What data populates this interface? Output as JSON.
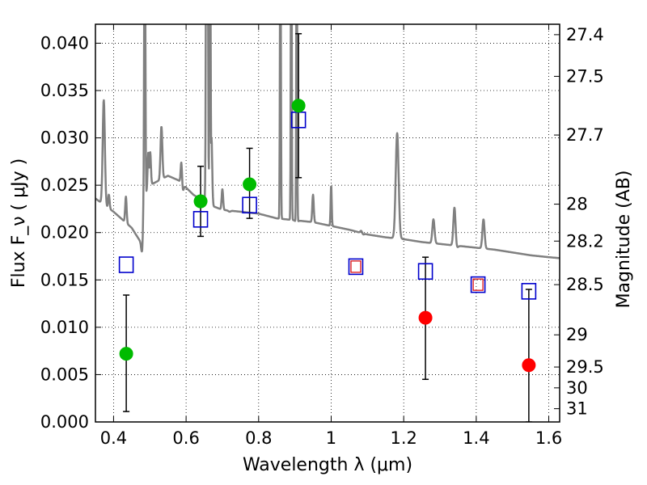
{
  "chart_data": {
    "type": "scatter",
    "title": "",
    "xlabel": "Wavelength  λ (μm)",
    "ylabel": "Flux  F_ν  ( μJy )",
    "y2label": "Magnitude (AB)",
    "xlim": [
      0.35,
      1.63
    ],
    "ylim": [
      0.0,
      0.042
    ],
    "grid": true,
    "xticks": [
      0.4,
      0.6,
      0.8,
      1.0,
      1.2,
      1.4,
      1.6
    ],
    "xtick_labels": [
      "0.4",
      "0.6",
      "0.8",
      "1",
      "1.2",
      "1.4",
      "1.6"
    ],
    "yticks": [
      0.0,
      0.005,
      0.01,
      0.015,
      0.02,
      0.025,
      0.03,
      0.035,
      0.04
    ],
    "ytick_labels": [
      "0.000",
      "0.005",
      "0.010",
      "0.015",
      "0.020",
      "0.025",
      "0.030",
      "0.035",
      "0.040"
    ],
    "y2ticks": [
      {
        "label": "27.4",
        "flux": 0.0409
      },
      {
        "label": "27.5",
        "flux": 0.0365
      },
      {
        "label": "27.7",
        "flux": 0.0303
      },
      {
        "label": "28",
        "flux": 0.023
      },
      {
        "label": "28.2",
        "flux": 0.0191
      },
      {
        "label": "28.5",
        "flux": 0.0145
      },
      {
        "label": "29",
        "flux": 0.0092
      },
      {
        "label": "29.5",
        "flux": 0.0058
      },
      {
        "label": "30",
        "flux": 0.0036
      },
      {
        "label": "31",
        "flux": 0.0014
      }
    ],
    "series": [
      {
        "kind": "points",
        "color": "#00bb00",
        "points": [
          {
            "x": 0.435,
            "y": 0.0072,
            "err": [
              0.0011,
              0.0134
            ]
          },
          {
            "x": 0.64,
            "y": 0.0233,
            "err": [
              0.0196,
              0.027
            ]
          },
          {
            "x": 0.775,
            "y": 0.0251,
            "err": [
              0.0215,
              0.0289
            ]
          },
          {
            "x": 0.91,
            "y": 0.0334,
            "err": [
              0.0258,
              0.041
            ]
          }
        ]
      },
      {
        "kind": "points",
        "color": "#ff0000",
        "points": [
          {
            "x": 1.26,
            "y": 0.011,
            "err": [
              0.0045,
              0.0174
            ]
          },
          {
            "x": 1.545,
            "y": 0.006,
            "err": [
              0.0,
              0.014
            ]
          }
        ]
      },
      {
        "kind": "model_photometry",
        "color": "#0000cc",
        "points": [
          {
            "x": 0.435,
            "y": 0.0166
          },
          {
            "x": 0.64,
            "y": 0.0214
          },
          {
            "x": 0.775,
            "y": 0.0229
          },
          {
            "x": 0.91,
            "y": 0.0319
          },
          {
            "x": 1.068,
            "y": 0.0164
          },
          {
            "x": 1.26,
            "y": 0.0159
          },
          {
            "x": 1.405,
            "y": 0.0145
          },
          {
            "x": 1.545,
            "y": 0.0138
          }
        ]
      },
      {
        "kind": "model_photometry_inner",
        "color": "#dd0000",
        "points": [
          {
            "x": 1.068,
            "y": 0.0164
          },
          {
            "x": 1.405,
            "y": 0.0145
          }
        ]
      },
      {
        "kind": "spectrum",
        "color": "#808080",
        "continuum": [
          [
            0.35,
            0.0236
          ],
          [
            0.4,
            0.0222
          ],
          [
            0.45,
            0.0205
          ],
          [
            0.478,
            0.0188
          ],
          [
            0.483,
            0.0235
          ],
          [
            0.5,
            0.025
          ],
          [
            0.55,
            0.026
          ],
          [
            0.58,
            0.0255
          ],
          [
            0.62,
            0.024
          ],
          [
            0.66,
            0.023
          ],
          [
            0.7,
            0.0224
          ],
          [
            0.75,
            0.0222
          ],
          [
            0.8,
            0.022
          ],
          [
            0.85,
            0.0215
          ],
          [
            0.9,
            0.0213
          ],
          [
            0.95,
            0.0211
          ],
          [
            1.0,
            0.0207
          ],
          [
            1.05,
            0.0203
          ],
          [
            1.1,
            0.0198
          ],
          [
            1.15,
            0.0195
          ],
          [
            1.2,
            0.0193
          ],
          [
            1.25,
            0.019
          ],
          [
            1.3,
            0.0188
          ],
          [
            1.35,
            0.0186
          ],
          [
            1.4,
            0.0184
          ],
          [
            1.45,
            0.0182
          ],
          [
            1.5,
            0.0179
          ],
          [
            1.55,
            0.0176
          ],
          [
            1.6,
            0.0174
          ],
          [
            1.63,
            0.0173
          ]
        ],
        "lines": [
          [
            0.373,
            0.034,
            0.003
          ],
          [
            0.387,
            0.024,
            0.002
          ],
          [
            0.434,
            0.0238,
            0.002
          ],
          [
            0.486,
            0.06,
            0.0015
          ],
          [
            0.496,
            0.0285,
            0.002
          ],
          [
            0.501,
            0.0285,
            0.002
          ],
          [
            0.532,
            0.0312,
            0.0025
          ],
          [
            0.587,
            0.028,
            0.002
          ],
          [
            0.656,
            0.06,
            0.0015
          ],
          [
            0.659,
            0.06,
            0.0015
          ],
          [
            0.666,
            0.06,
            0.0015
          ],
          [
            0.67,
            0.03,
            0.002
          ],
          [
            0.7,
            0.0246,
            0.002
          ],
          [
            0.86,
            0.06,
            0.0012
          ],
          [
            0.89,
            0.06,
            0.0012
          ],
          [
            0.905,
            0.06,
            0.0012
          ],
          [
            0.95,
            0.024,
            0.002
          ],
          [
            1.0,
            0.025,
            0.0015
          ],
          [
            1.083,
            0.0205,
            0.003
          ],
          [
            1.182,
            0.0305,
            0.004
          ],
          [
            1.282,
            0.0214,
            0.003
          ],
          [
            1.34,
            0.0228,
            0.003
          ],
          [
            1.42,
            0.0214,
            0.003
          ]
        ],
        "dips": [
          [
            0.478,
            0.018,
            0.002
          ],
          [
            0.59,
            0.0242,
            0.003
          ],
          [
            0.685,
            0.0233,
            0.003
          ],
          [
            0.72,
            0.0222,
            0.003
          ],
          [
            0.905,
            0.021,
            0.003
          ],
          [
            1.085,
            0.0196,
            0.004
          ],
          [
            1.345,
            0.0183,
            0.004
          ]
        ]
      }
    ]
  }
}
